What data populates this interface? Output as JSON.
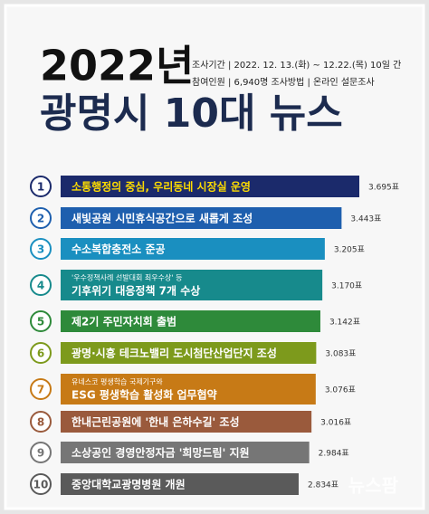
{
  "chart_data": {
    "type": "bar",
    "title": "2022년",
    "subtitle": "광명시 10대 뉴스",
    "info": [
      "조사기간 | 2022. 12. 13.(화) ~ 12.22.(목) 10일 간",
      "참여인원 | 6,940명   조사방법 | 온라인 설문조사"
    ],
    "ranks": [
      "1",
      "2",
      "3",
      "4",
      "5",
      "6",
      "7",
      "8",
      "9",
      "10"
    ],
    "categories": [
      "소통행정의 중심, 우리동네 시장실 운영",
      "새빛공원 시민휴식공간으로 새롭게 조성",
      "수소복합충전소 준공",
      "기후위기 대응정책 7개 수상",
      "제2기 주민자치회 출범",
      "광명·시흥 테크노밸리 도시첨단산업단지 조성",
      "ESG 평생학습 활성화 업무협약",
      "한내근린공원에 '한내 은하수길' 조성",
      "소상공인 경영안정자금 '희망드림' 지원",
      "중앙대학교광명병원 개원"
    ],
    "subtexts": [
      null,
      null,
      null,
      "'우수정책사례 선발대회 최우수상' 등",
      null,
      null,
      "유네스코 평생학습 국제기구와",
      null,
      null,
      null
    ],
    "values": [
      3695,
      3443,
      3205,
      3170,
      3142,
      3083,
      3076,
      3016,
      2984,
      2834
    ],
    "value_labels": [
      "3.695표",
      "3.443표",
      "3.205표",
      "3.170표",
      "3.142표",
      "3.083표",
      "3.076표",
      "3.016표",
      "2.984표",
      "2.834표"
    ],
    "colors": [
      "#1b2a6b",
      "#1e5fae",
      "#1a8fc0",
      "#178a8c",
      "#2e8a3a",
      "#7d9a1c",
      "#c77a16",
      "#9a5a3c",
      "#767676",
      "#5a5a5a"
    ],
    "watermark": "뉴스팜"
  }
}
